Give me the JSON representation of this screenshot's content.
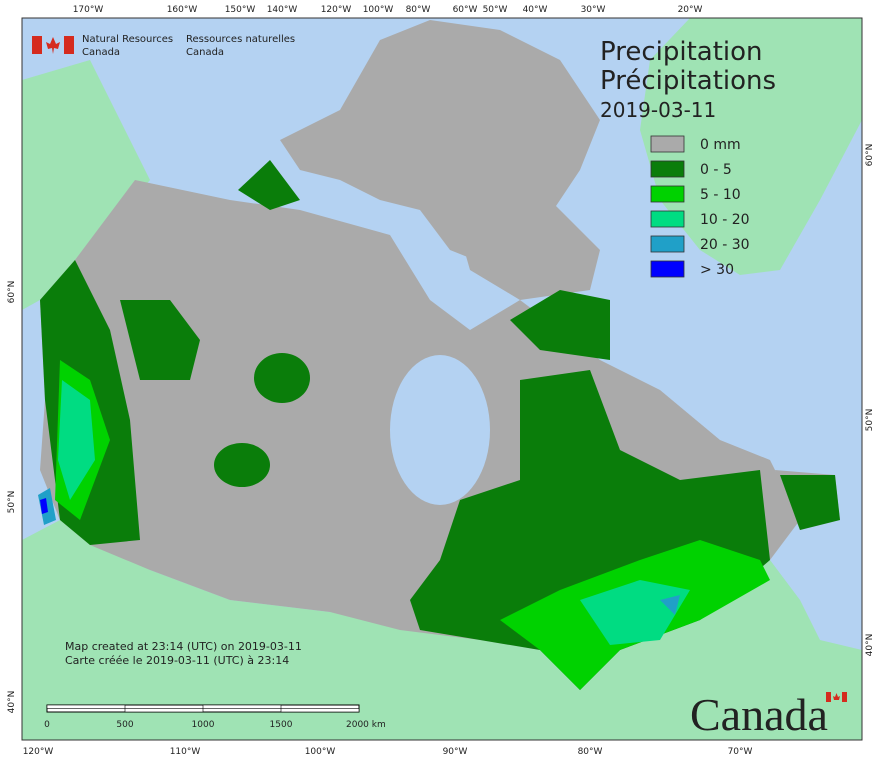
{
  "header": {
    "agency_en": [
      "Natural Resources",
      "Canada"
    ],
    "agency_fr": [
      "Ressources naturelles",
      "Canada"
    ]
  },
  "title": [
    "Precipitation",
    "Précipitations",
    "2019-03-11"
  ],
  "legend": {
    "items": [
      {
        "label": "0 mm",
        "color": "#aaaaaa"
      },
      {
        "label": "0 - 5",
        "color": "#0a7d0a"
      },
      {
        "label": "5 - 10",
        "color": "#00d200"
      },
      {
        "label": "10 - 20",
        "color": "#00dc82"
      },
      {
        "label": "20 - 30",
        "color": "#20a0c8"
      },
      {
        "label": "> 30",
        "color": "#0000ff"
      }
    ]
  },
  "graticule": {
    "top": [
      "170°W",
      "160°W",
      "150°W",
      "140°W",
      "120°W",
      "100°W",
      "80°W",
      "60°W",
      "50°W",
      "40°W",
      "30°W",
      "20°W"
    ],
    "bottom": [
      "120°W",
      "110°W",
      "100°W",
      "90°W",
      "80°W",
      "70°W"
    ],
    "left": [
      "60°N",
      "50°N",
      "40°N"
    ],
    "right": [
      "60°N",
      "50°N",
      "40°N"
    ]
  },
  "footer": {
    "created": [
      "Map created at 23:14 (UTC) on 2019-03-11",
      "Carte créée le 2019-03-11 (UTC) à 23:14"
    ],
    "scale": [
      "0",
      "500",
      "1000",
      "1500",
      "2000 km"
    ],
    "wordmark": "Canada"
  }
}
